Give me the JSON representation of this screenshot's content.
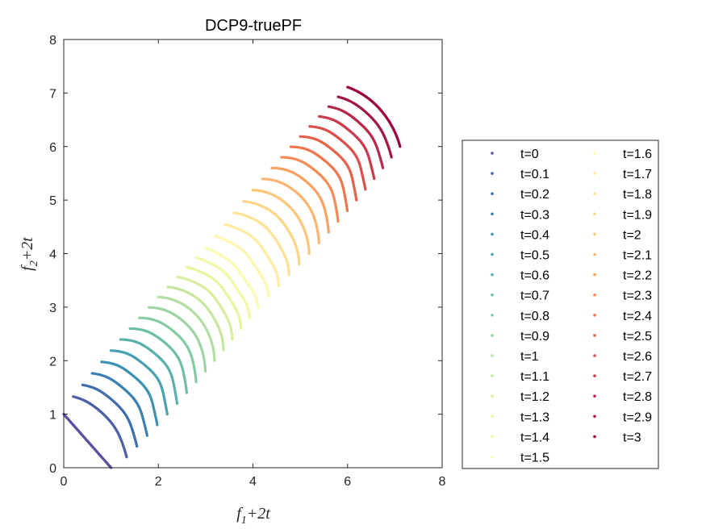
{
  "chart_data": {
    "type": "scatter",
    "title": "DCP9-truePF",
    "xlabel": {
      "base": "f",
      "sub": "1",
      "rest": "+2t"
    },
    "ylabel": {
      "base": "f",
      "sub": "2",
      "rest": "+2t"
    },
    "xlim": [
      0,
      8
    ],
    "ylim": [
      0,
      8
    ],
    "xticks": [
      0,
      2,
      4,
      6,
      8
    ],
    "yticks": [
      0,
      1,
      2,
      3,
      4,
      5,
      6,
      7,
      8
    ],
    "grid": false,
    "legend_position": "outside-right",
    "legend_columns": 2,
    "series": [
      {
        "name": "t=0",
        "t": 0,
        "color": "#5e4fa2"
      },
      {
        "name": "t=0.1",
        "t": 0.1,
        "color": "#4d5fa8"
      },
      {
        "name": "t=0.2",
        "t": 0.2,
        "color": "#3f6fae"
      },
      {
        "name": "t=0.3",
        "t": 0.3,
        "color": "#3a80b4"
      },
      {
        "name": "t=0.4",
        "t": 0.4,
        "color": "#3d91b2"
      },
      {
        "name": "t=0.5",
        "t": 0.5,
        "color": "#48a1b0"
      },
      {
        "name": "t=0.6",
        "t": 0.6,
        "color": "#58b1ab"
      },
      {
        "name": "t=0.7",
        "t": 0.7,
        "color": "#6cbfa5"
      },
      {
        "name": "t=0.8",
        "t": 0.8,
        "color": "#84caa4"
      },
      {
        "name": "t=0.9",
        "t": 0.9,
        "color": "#9dd4a4"
      },
      {
        "name": "t=1",
        "t": 1.0,
        "color": "#b3dea2"
      },
      {
        "name": "t=1.1",
        "t": 1.1,
        "color": "#c7e69f"
      },
      {
        "name": "t=1.2",
        "t": 1.2,
        "color": "#d9ee9d"
      },
      {
        "name": "t=1.3",
        "t": 1.3,
        "color": "#e8f59f"
      },
      {
        "name": "t=1.4",
        "t": 1.4,
        "color": "#f1f8a6"
      },
      {
        "name": "t=1.5",
        "t": 1.5,
        "color": "#f8fbb0"
      },
      {
        "name": "t=1.6",
        "t": 1.6,
        "color": "#fdf6ae"
      },
      {
        "name": "t=1.7",
        "t": 1.7,
        "color": "#feeda1"
      },
      {
        "name": "t=1.8",
        "t": 1.8,
        "color": "#fee294"
      },
      {
        "name": "t=1.9",
        "t": 1.9,
        "color": "#fed586"
      },
      {
        "name": "t=2",
        "t": 2.0,
        "color": "#fdc679"
      },
      {
        "name": "t=2.1",
        "t": 2.1,
        "color": "#fcb46e"
      },
      {
        "name": "t=2.2",
        "t": 2.2,
        "color": "#f9a062"
      },
      {
        "name": "t=2.3",
        "t": 2.3,
        "color": "#f68a55"
      },
      {
        "name": "t=2.4",
        "t": 2.4,
        "color": "#f0754c"
      },
      {
        "name": "t=2.5",
        "t": 2.5,
        "color": "#e6604b"
      },
      {
        "name": "t=2.6",
        "t": 2.6,
        "color": "#da4e4c"
      },
      {
        "name": "t=2.7",
        "t": 2.7,
        "color": "#cb3b4c"
      },
      {
        "name": "t=2.8",
        "t": 2.8,
        "color": "#b8294b"
      },
      {
        "name": "t=2.9",
        "t": 2.9,
        "color": "#a3174a"
      },
      {
        "name": "t=3",
        "t": 3.0,
        "color": "#9e0142"
      }
    ]
  }
}
